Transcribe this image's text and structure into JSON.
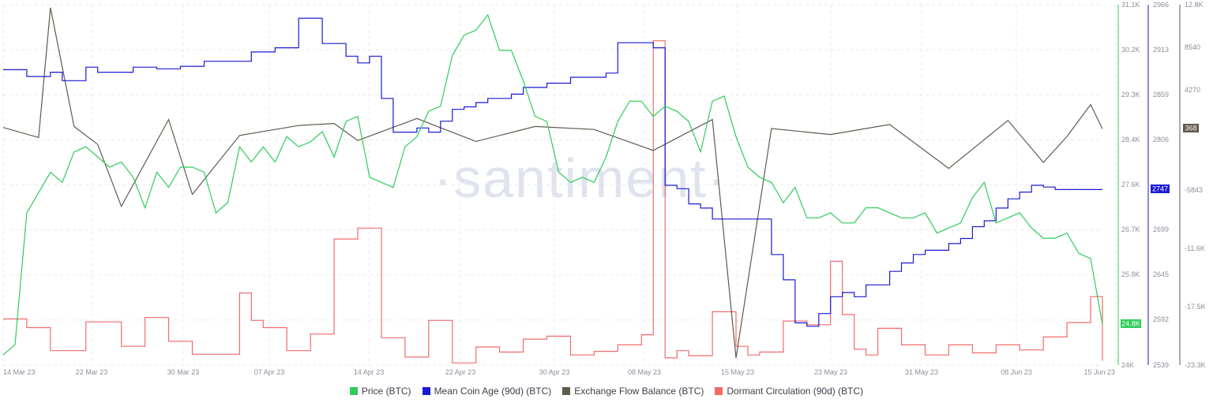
{
  "watermark": "·santiment·",
  "colors": {
    "price": "#2ecc5a",
    "mean_coin_age": "#1a1ad4",
    "exchange_flow": "#5f5a4d",
    "dormant": "#f26b6b",
    "grid": "#e8eaf0"
  },
  "chart_data": {
    "type": "line",
    "x_ticks": [
      "14 Mar 23",
      "22 Mar 23",
      "30 Mar 23",
      "07 Apr 23",
      "14 Apr 23",
      "22 Apr 23",
      "30 Apr 23",
      "08 May 23",
      "15 May 23",
      "23 May 23",
      "31 May 23",
      "08 Jun 23",
      "15 Jun 23"
    ],
    "axes": {
      "price": {
        "ticks": [
          "31.1K",
          "30.2K",
          "29.3K",
          "28.4K",
          "27.6K",
          "26.7K",
          "25.8K",
          "24K"
        ],
        "ylim": [
          24000,
          31100
        ],
        "current_label": "24.8K"
      },
      "mean_coin_age": {
        "ticks": [
          "2966",
          "2913",
          "2859",
          "2806",
          "2699",
          "2645",
          "2592",
          "2539"
        ],
        "ylim": [
          2539,
          2966
        ],
        "current_label": "2747"
      },
      "exchange_flow": {
        "ticks": [
          "12.8K",
          "8540",
          "4270",
          "-5843",
          "-11.6K",
          "-17.5K",
          "-23.3K"
        ],
        "ylim": [
          -23300,
          12800
        ],
        "current_label": "368"
      }
    },
    "series": [
      {
        "name": "Price (BTC)",
        "axis": "price",
        "step": false,
        "x": [
          0,
          1,
          2,
          3,
          4,
          5,
          6,
          7,
          8,
          9,
          10,
          11,
          12,
          13,
          14,
          15,
          16,
          17,
          18,
          19,
          20,
          21,
          22,
          23,
          24,
          25,
          26,
          27,
          28,
          29,
          30,
          31,
          32,
          33,
          34,
          35,
          36,
          37,
          38,
          39,
          40,
          41,
          42,
          43,
          44,
          45,
          46,
          47,
          48,
          49,
          50,
          51,
          52,
          53,
          54,
          55,
          56,
          57,
          58,
          59,
          60,
          61,
          62,
          63,
          64,
          65,
          66,
          67,
          68,
          69,
          70,
          71,
          72,
          73,
          74,
          75,
          76,
          77,
          78,
          79,
          80,
          81,
          82,
          83,
          84,
          85,
          86,
          87,
          88,
          89,
          90,
          91,
          92,
          93
        ],
        "y": [
          24200,
          24400,
          27000,
          27400,
          27800,
          27600,
          28200,
          28300,
          28100,
          27900,
          28000,
          27700,
          27100,
          27800,
          27500,
          27900,
          27900,
          27800,
          27000,
          27200,
          28300,
          28000,
          28300,
          28000,
          28500,
          28300,
          28400,
          28600,
          28100,
          28800,
          28900,
          27700,
          27600,
          27500,
          28300,
          28500,
          29000,
          29100,
          30100,
          30500,
          30600,
          30900,
          30200,
          30200,
          29600,
          28900,
          28800,
          27800,
          27600,
          27700,
          27600,
          28100,
          28800,
          29200,
          29200,
          28900,
          29100,
          29000,
          28800,
          28200,
          29200,
          29300,
          28500,
          27900,
          27700,
          27600,
          27200,
          27500,
          26900,
          26900,
          27000,
          26800,
          26800,
          27100,
          27100,
          27000,
          26900,
          26900,
          27000,
          26600,
          26700,
          26800,
          27300,
          27600,
          26800,
          26900,
          27000,
          26700,
          26500,
          26500,
          26600,
          26200,
          26100,
          24800
        ]
      },
      {
        "name": "Mean Coin Age (90d) (BTC)",
        "axis": "mean_coin_age",
        "step": true,
        "x": [
          0,
          2,
          4,
          5,
          7,
          8,
          11,
          13,
          15,
          17,
          21,
          23,
          25,
          27,
          29,
          30,
          31,
          32,
          33,
          35,
          36,
          37,
          38,
          39,
          40,
          41,
          43,
          44,
          46,
          48,
          51,
          52,
          55,
          56,
          57,
          58,
          59,
          60,
          61,
          62,
          63,
          65,
          66,
          67,
          68,
          69,
          70,
          71,
          72,
          73,
          75,
          76,
          77,
          78,
          80,
          81,
          82,
          83,
          84,
          85,
          86,
          87,
          88,
          89,
          90,
          91,
          92,
          93
        ],
        "y": [
          2889,
          2881,
          2886,
          2876,
          2892,
          2886,
          2892,
          2890,
          2893,
          2899,
          2910,
          2915,
          2950,
          2920,
          2905,
          2897,
          2905,
          2855,
          2815,
          2820,
          2815,
          2828,
          2842,
          2845,
          2850,
          2855,
          2860,
          2868,
          2873,
          2880,
          2885,
          2921,
          2915,
          2752,
          2748,
          2730,
          2725,
          2712,
          2712,
          2712,
          2712,
          2670,
          2640,
          2589,
          2585,
          2600,
          2620,
          2625,
          2620,
          2634,
          2650,
          2660,
          2670,
          2675,
          2683,
          2689,
          2703,
          2710,
          2725,
          2736,
          2744,
          2752,
          2750,
          2747,
          2747,
          2747,
          2747,
          2747
        ]
      },
      {
        "name": "Exchange Flow Balance (BTC)",
        "axis": "exchange_flow",
        "step": false,
        "x": [
          0,
          3,
          4,
          6,
          8,
          10,
          14,
          16,
          20,
          25,
          28,
          30,
          35,
          40,
          45,
          50,
          55,
          60,
          62,
          65,
          70,
          75,
          80,
          85,
          88,
          90,
          92,
          93
        ],
        "y": [
          500,
          -500,
          12500,
          600,
          -1200,
          -7400,
          1300,
          -6200,
          -300,
          700,
          900,
          -800,
          1400,
          -900,
          600,
          300,
          -1800,
          1300,
          -22600,
          400,
          -200,
          800,
          -3600,
          1200,
          -3000,
          -400,
          2800,
          368
        ]
      },
      {
        "name": "Dormant Circulation (90d) (BTC)",
        "axis": "dormant",
        "step": true,
        "x": [
          0,
          2,
          4,
          7,
          10,
          12,
          14,
          16,
          20,
          21,
          22,
          24,
          26,
          28,
          30,
          32,
          34,
          36,
          38,
          40,
          42,
          44,
          46,
          48,
          50,
          52,
          54,
          55,
          56,
          57,
          58,
          60,
          62,
          63,
          64,
          66,
          68,
          70,
          71,
          72,
          73,
          74,
          76,
          78,
          80,
          82,
          84,
          86,
          88,
          90,
          92,
          93
        ],
        "y": [
          640,
          520,
          200,
          600,
          260,
          660,
          330,
          150,
          1000,
          620,
          520,
          200,
          430,
          1750,
          1900,
          380,
          110,
          620,
          30,
          250,
          180,
          360,
          400,
          140,
          190,
          280,
          420,
          4500,
          100,
          200,
          130,
          740,
          260,
          140,
          180,
          610,
          560,
          1440,
          700,
          220,
          140,
          510,
          280,
          140,
          280,
          170,
          280,
          210,
          390,
          590,
          950,
          60
        ]
      }
    ]
  },
  "legend": [
    {
      "label": "Price (BTC)",
      "color": "#2ecc5a"
    },
    {
      "label": "Mean Coin Age (90d) (BTC)",
      "color": "#1a1ad4"
    },
    {
      "label": "Exchange Flow Balance (BTC)",
      "color": "#5f5a4d"
    },
    {
      "label": "Dormant Circulation (90d) (BTC)",
      "color": "#f26b6b"
    }
  ]
}
